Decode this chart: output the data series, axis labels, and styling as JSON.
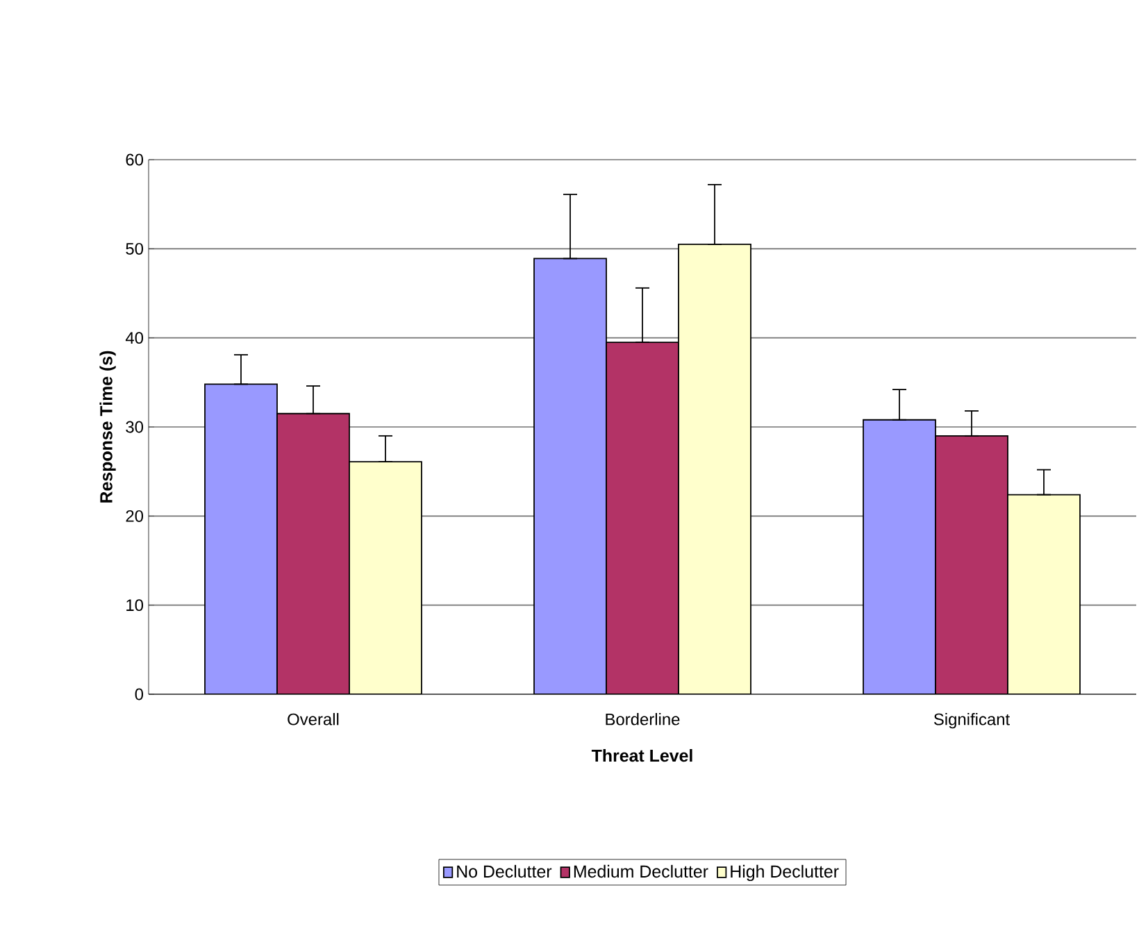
{
  "chart_data": {
    "type": "bar",
    "xlabel": "Threat Level",
    "ylabel": "Response Time (s)",
    "categories": [
      "Overall",
      "Borderline",
      "Significant"
    ],
    "series": [
      {
        "name": "No Declutter",
        "color": "#9999ff",
        "values": [
          34.8,
          48.9,
          30.8
        ],
        "errors": [
          [
            34.8,
            38.1
          ],
          [
            48.9,
            56.1
          ],
          [
            30.8,
            34.2
          ]
        ]
      },
      {
        "name": "Medium Declutter",
        "color": "#b33366",
        "values": [
          31.5,
          39.5,
          29.0
        ],
        "errors": [
          [
            31.5,
            34.6
          ],
          [
            39.5,
            45.6
          ],
          [
            29.0,
            31.8
          ]
        ]
      },
      {
        "name": "High Declutter",
        "color": "#ffffcc",
        "values": [
          26.1,
          50.5,
          22.4
        ],
        "errors": [
          [
            26.1,
            29.0
          ],
          [
            50.5,
            57.2
          ],
          [
            22.4,
            25.2
          ]
        ]
      }
    ],
    "ylim": [
      0,
      60
    ],
    "yticks": [
      0,
      10,
      20,
      30,
      40,
      50,
      60
    ],
    "grid": "y",
    "legend": "bottom"
  }
}
